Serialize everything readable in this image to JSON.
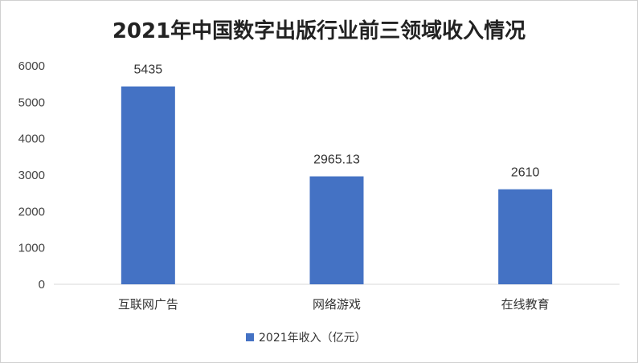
{
  "chart_data": {
    "type": "bar",
    "title": "2021年中国数字出版行业前三领域收入情况",
    "categories": [
      "互联网广告",
      "网络游戏",
      "在线教育"
    ],
    "series": [
      {
        "name": "2021年收入（亿元）",
        "values": [
          5435,
          2965.13,
          2610
        ],
        "labels": [
          "5435",
          "2965.13",
          "2610"
        ]
      }
    ],
    "y_ticks": [
      "0",
      "1000",
      "2000",
      "3000",
      "4000",
      "5000",
      "6000"
    ],
    "ylim": [
      0,
      6000
    ],
    "xlabel": "",
    "ylabel": "",
    "grid": false,
    "legend": "bottom-center",
    "bar_color": "#4472C4"
  }
}
